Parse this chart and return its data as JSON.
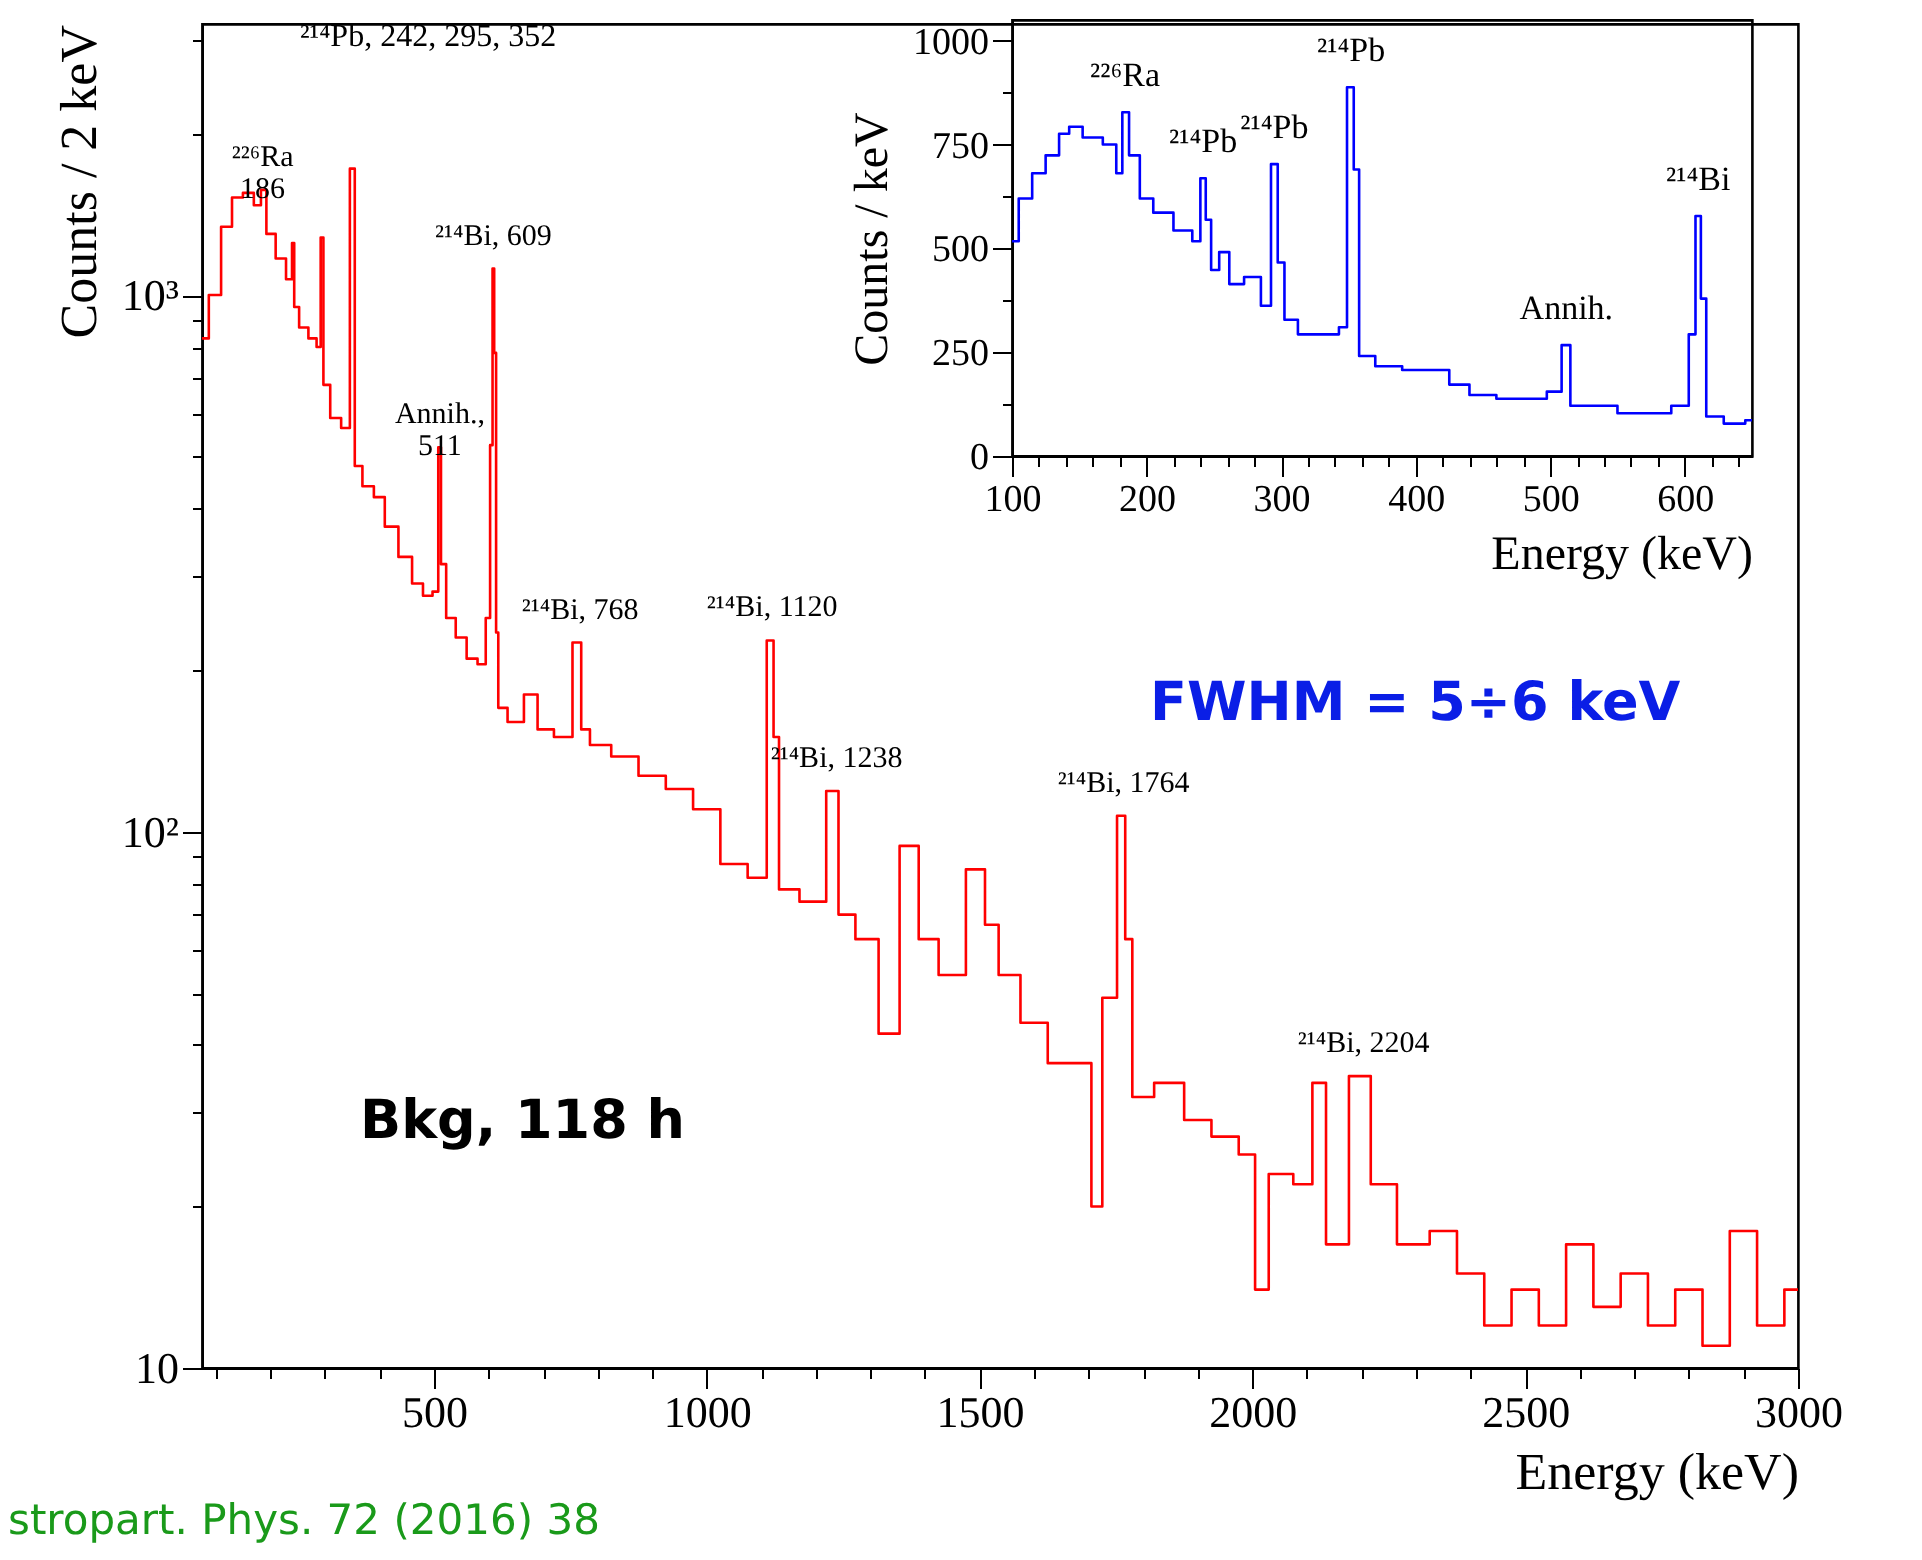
{
  "chart_data": [
    {
      "type": "step",
      "xlabel": "Energy (keV)",
      "ylabel": "Counts / 2 keV",
      "log": true,
      "xlim": [
        75,
        3000
      ],
      "ylim": [
        10,
        3200
      ],
      "xticks": [
        {
          "value": 100,
          "label": null
        },
        {
          "value": 200,
          "label": null
        },
        {
          "value": 300,
          "label": null
        },
        {
          "value": 400,
          "label": null
        },
        500,
        {
          "value": 600,
          "label": null
        },
        {
          "value": 700,
          "label": null
        },
        {
          "value": 800,
          "label": null
        },
        {
          "value": 900,
          "label": null
        },
        1000,
        {
          "value": 1100,
          "label": null
        },
        {
          "value": 1200,
          "label": null
        },
        {
          "value": 1300,
          "label": null
        },
        {
          "value": 1400,
          "label": null
        },
        1500,
        {
          "value": 1600,
          "label": null
        },
        {
          "value": 1700,
          "label": null
        },
        {
          "value": 1800,
          "label": null
        },
        {
          "value": 1900,
          "label": null
        },
        2000,
        {
          "value": 2100,
          "label": null
        },
        {
          "value": 2200,
          "label": null
        },
        {
          "value": 2300,
          "label": null
        },
        {
          "value": 2400,
          "label": null
        },
        2500,
        {
          "value": 2600,
          "label": null
        },
        {
          "value": 2700,
          "label": null
        },
        {
          "value": 2800,
          "label": null
        },
        {
          "value": 2900,
          "label": null
        },
        3000
      ],
      "yticks": [
        10,
        {
          "value": 20,
          "label": null
        },
        {
          "value": 30,
          "label": null
        },
        {
          "value": 40,
          "label": null
        },
        {
          "value": 50,
          "label": null
        },
        {
          "value": 60,
          "label": null
        },
        {
          "value": 70,
          "label": null
        },
        {
          "value": 80,
          "label": null
        },
        {
          "value": 90,
          "label": null
        },
        {
          "value": 100,
          "label": "10²"
        },
        {
          "value": 200,
          "label": null
        },
        {
          "value": 300,
          "label": null
        },
        {
          "value": 400,
          "label": null
        },
        {
          "value": 500,
          "label": null
        },
        {
          "value": 600,
          "label": null
        },
        {
          "value": 700,
          "label": null
        },
        {
          "value": 800,
          "label": null
        },
        {
          "value": 900,
          "label": null
        },
        {
          "value": 1000,
          "label": "10³"
        },
        {
          "value": 2000,
          "label": null
        },
        {
          "value": 3000,
          "label": null
        }
      ],
      "series": [
        {
          "color": "#ff0000",
          "x": [
            75,
            100,
            120,
            140,
            160,
            180,
            186,
            200,
            220,
            238,
            242,
            246,
            260,
            280,
            290,
            295,
            300,
            320,
            340,
            352,
            358,
            380,
            400,
            420,
            450,
            470,
            490,
            505,
            511,
            515,
            530,
            550,
            570,
            590,
            600,
            606,
            609,
            612,
            616,
            620,
            650,
            680,
            700,
            740,
            768,
            772,
            800,
            850,
            900,
            950,
            1000,
            1050,
            1100,
            1120,
            1125,
            1140,
            1200,
            1238,
            1245,
            1300,
            1330,
            1377,
            1400,
            1450,
            1500,
            1520,
            1550,
            1600,
            1650,
            1700,
            1710,
            1740,
            1764,
            1770,
            1790,
            1850,
            1900,
            1950,
            2000,
            2010,
            2050,
            2100,
            2120,
            2150,
            2204,
            2230,
            2300,
            2350,
            2400,
            2450,
            2500,
            2550,
            2600,
            2650,
            2700,
            2750,
            2800,
            2850,
            2900,
            2950,
            3000
          ],
          "values": [
            830,
            1000,
            1340,
            1520,
            1550,
            1470,
            1570,
            1300,
            1170,
            1070,
            1250,
            950,
            870,
            830,
            800,
            1280,
            680,
            590,
            565,
            1720,
            480,
            440,
            420,
            370,
            325,
            290,
            275,
            280,
            520,
            315,
            250,
            230,
            210,
            205,
            250,
            525,
            1120,
            780,
            235,
            170,
            160,
            180,
            155,
            150,
            225,
            155,
            145,
            138,
            127,
            120,
            110,
            87,
            82,
            227,
            150,
            78,
            74,
            119,
            70,
            63,
            42,
            94,
            63,
            54,
            85,
            67,
            54,
            44,
            37,
            37,
            20,
            49,
            107,
            63,
            32,
            34,
            29,
            27,
            25,
            14,
            23,
            22,
            34,
            17,
            35,
            22,
            17,
            18,
            15,
            12,
            14,
            12,
            17,
            13,
            15,
            12,
            14,
            11,
            18,
            12,
            14
          ]
        }
      ],
      "annotations": [
        {
          "text": "²²⁶Ra\n186",
          "x": 186,
          "y": 1570
        },
        "²¹⁴Pb, 242, 295, 352",
        {
          "text": "Annih.,\n511",
          "x": 511,
          "y": 520
        },
        {
          "text": "²¹⁴Bi, 609",
          "x": 609,
          "y": 1120
        },
        {
          "text": "²¹⁴Bi, 768",
          "x": 768,
          "y": 225
        },
        {
          "text": "²¹⁴Bi, 1120",
          "x": 1120,
          "y": 227
        },
        {
          "text": "²¹⁴Bi, 1238",
          "x": 1238,
          "y": 119
        },
        {
          "text": "²¹⁴Bi, 1764",
          "x": 1764,
          "y": 107
        },
        {
          "text": "²¹⁴Bi, 2204",
          "x": 2204,
          "y": 35
        },
        "Bkg, 118 h",
        "FWHM = 5÷6 keV",
        "stropart. Phys. 72 (2016) 38"
      ]
    },
    {
      "type": "step",
      "xlabel": "Energy (keV)",
      "ylabel": "Counts / keV",
      "xlim": [
        100,
        650
      ],
      "ylim": [
        0,
        1050
      ],
      "xticks": [
        100,
        {
          "value": 120,
          "label": null
        },
        {
          "value": 140,
          "label": null
        },
        {
          "value": 160,
          "label": null
        },
        {
          "value": 180,
          "label": null
        },
        200,
        {
          "value": 220,
          "label": null
        },
        {
          "value": 240,
          "label": null
        },
        {
          "value": 260,
          "label": null
        },
        {
          "value": 280,
          "label": null
        },
        300,
        {
          "value": 320,
          "label": null
        },
        {
          "value": 340,
          "label": null
        },
        {
          "value": 360,
          "label": null
        },
        {
          "value": 380,
          "label": null
        },
        400,
        {
          "value": 420,
          "label": null
        },
        {
          "value": 440,
          "label": null
        },
        {
          "value": 460,
          "label": null
        },
        {
          "value": 480,
          "label": null
        },
        500,
        {
          "value": 520,
          "label": null
        },
        {
          "value": 540,
          "label": null
        },
        {
          "value": 560,
          "label": null
        },
        {
          "value": 580,
          "label": null
        },
        600,
        {
          "value": 620,
          "label": null
        },
        {
          "value": 640,
          "label": null
        }
      ],
      "yticks": [
        0,
        {
          "value": 125,
          "label": null
        },
        250,
        {
          "value": 375,
          "label": null
        },
        500,
        {
          "value": 625,
          "label": null
        },
        750,
        {
          "value": 875,
          "label": null
        },
        1000
      ],
      "series": [
        {
          "color": "#0000ff",
          "x": [
            100,
            110,
            120,
            130,
            140,
            145,
            160,
            175,
            180,
            184,
            190,
            200,
            210,
            230,
            238,
            242,
            246,
            250,
            258,
            265,
            280,
            290,
            295,
            300,
            305,
            320,
            340,
            346,
            352,
            356,
            360,
            380,
            400,
            420,
            430,
            450,
            470,
            490,
            505,
            512,
            518,
            540,
            560,
            580,
            600,
            606,
            610,
            614,
            618,
            640,
            650
          ],
          "values": [
            517,
            620,
            681,
            724,
            776,
            793,
            767,
            750,
            681,
            828,
            724,
            620,
            586,
            543,
            517,
            669,
            569,
            448,
            491,
            414,
            431,
            362,
            703,
            466,
            328,
            293,
            293,
            310,
            888,
            690,
            241,
            216,
            207,
            207,
            172,
            147,
            138,
            138,
            155,
            267,
            121,
            121,
            103,
            103,
            121,
            293,
            578,
            379,
            95,
            78,
            86
          ]
        }
      ],
      "annotations": [
        {
          "text": "²²⁶Ra",
          "x": 184,
          "y": 828
        },
        {
          "text": "²¹⁴Pb",
          "x": 242,
          "y": 669
        },
        {
          "text": "²¹⁴Pb",
          "x": 295,
          "y": 703
        },
        {
          "text": "²¹⁴Pb",
          "x": 352,
          "y": 888
        },
        {
          "text": "Annih.",
          "x": 512,
          "y": 267
        },
        {
          "text": "²¹⁴Bi",
          "x": 610,
          "y": 578
        }
      ]
    }
  ]
}
